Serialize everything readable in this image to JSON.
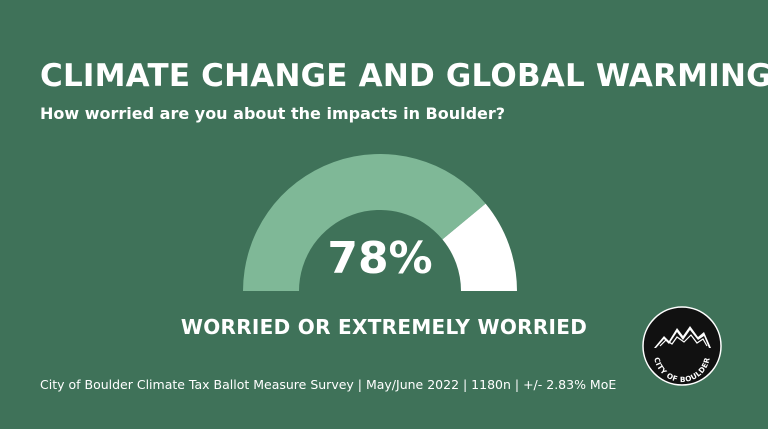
{
  "chart_data": {
    "type": "pie",
    "title": "CLIMATE CHANGE AND GLOBAL WARMING",
    "subtitle": "How worried are you about the impacts in Boulder?",
    "value": 78,
    "value_label": "78%",
    "category_label": "WORRIED OR EXTREMELY WORRIED",
    "max": 100,
    "colors": {
      "filled": "#7fb897",
      "remaining": "#ffffff",
      "background": "#3f7259"
    }
  },
  "footer": {
    "source": "City of Boulder Climate Tax Ballot Measure Survey | May/June 2022 | 1180n | +/- 2.83% MoE"
  },
  "logo": {
    "text": "CITY OF BOULDER",
    "icon": "mountain-icon"
  }
}
